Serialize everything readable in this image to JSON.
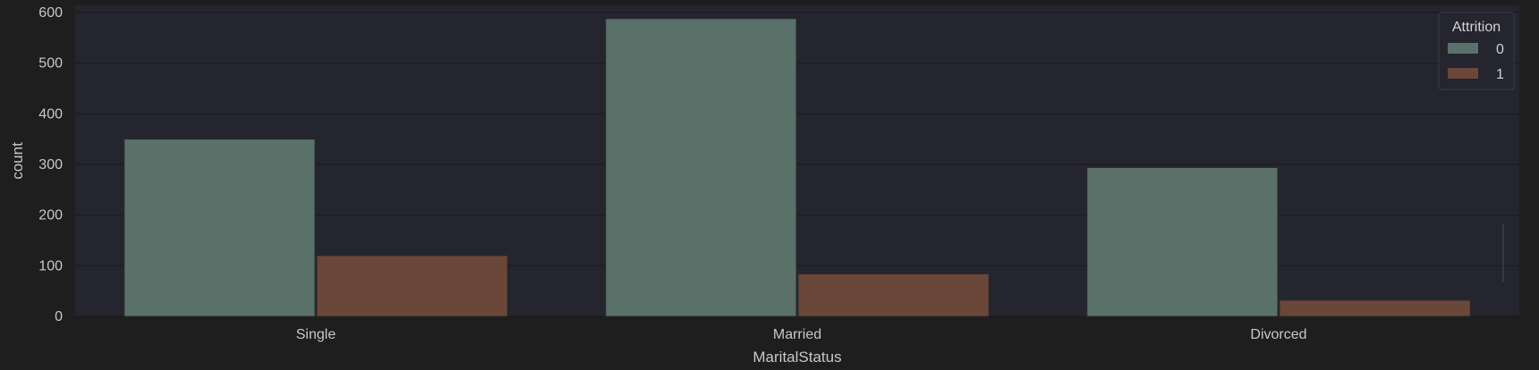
{
  "chart_data": {
    "type": "bar",
    "title": "",
    "xlabel": "MaritalStatus",
    "ylabel": "count",
    "categories": [
      "Single",
      "Married",
      "Divorced"
    ],
    "series": [
      {
        "name": "0",
        "values": [
          350,
          588,
          294
        ]
      },
      {
        "name": "1",
        "values": [
          120,
          84,
          32
        ]
      }
    ],
    "ylim": [
      0,
      600
    ],
    "yticks": [
      0,
      100,
      200,
      300,
      400,
      500,
      600
    ],
    "grid": true,
    "legend": {
      "title": "Attrition",
      "placement": "top-right"
    },
    "colors": {
      "series_0": "#5a7169",
      "series_1": "#6b473a",
      "plot_background": "#25252f",
      "figure_background": "#1e1e1e",
      "grid": "#1a1a1f"
    }
  }
}
